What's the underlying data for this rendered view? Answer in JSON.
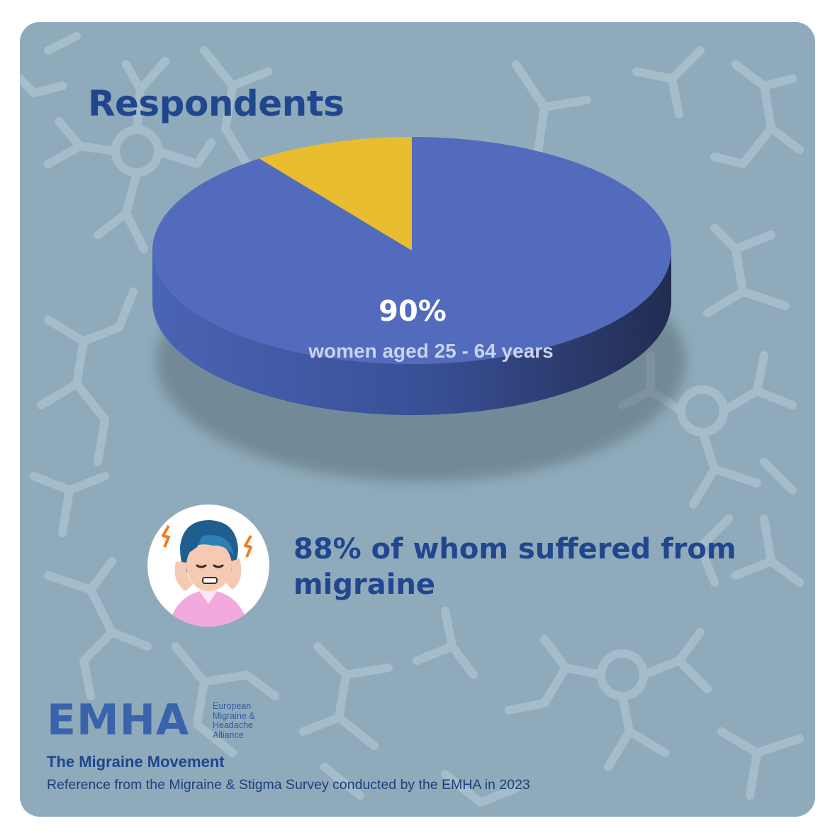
{
  "title": "Respondents",
  "chart_data": {
    "type": "pie",
    "title": "Respondents",
    "slices": [
      {
        "label": "women aged 25 - 64 years",
        "value": 90,
        "value_label": "90%",
        "color": "#526bbc"
      },
      {
        "label": "",
        "value": 10,
        "color": "#e8bd2f"
      }
    ],
    "legend": "none"
  },
  "stat": {
    "text": "88% of whom suffered from migraine",
    "icon": "migraine-headache-icon"
  },
  "logo": {
    "wordmark": "EMHA",
    "org_lines": [
      "European",
      "Migraine &",
      "Headache",
      "Alliance"
    ]
  },
  "tagline": "The Migraine Movement",
  "reference": "Reference from the  Migraine & Stigma Survey conducted by the EMHA in 2023",
  "colors": {
    "background": "#8fabbb",
    "heading": "#20468e",
    "pie_main": "#526bbc",
    "pie_minor": "#e8bd2f",
    "pie_side": "#2c3d75"
  }
}
